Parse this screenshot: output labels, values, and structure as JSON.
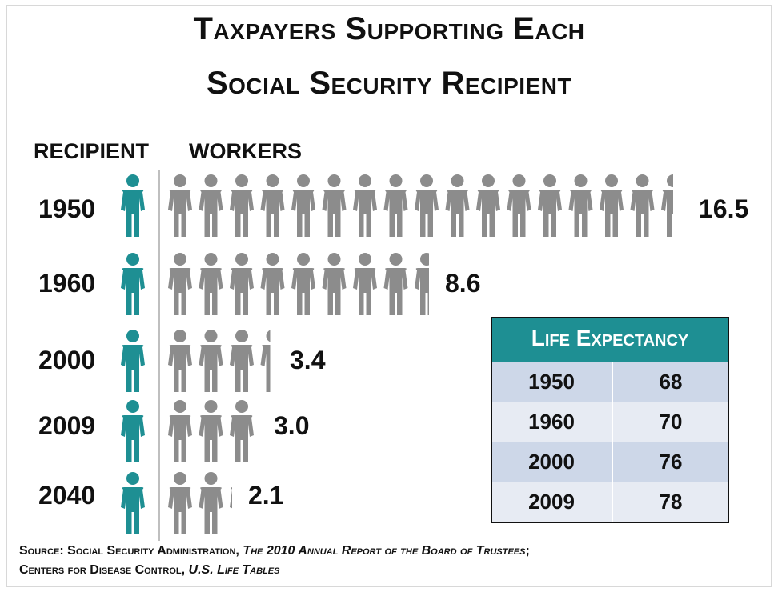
{
  "title_line1": "Taxpayers Supporting Each",
  "title_line2": "Social Security Recipient",
  "colors": {
    "recipient": "#1e8f93",
    "worker": "#8c8c8c",
    "table_header": "#1e8f93"
  },
  "chart_data": {
    "type": "bar",
    "title": "Taxpayers Supporting Each Social Security Recipient",
    "category_axis_label": "RECIPIENT",
    "value_axis_label": "WORKERS",
    "categories": [
      "1950",
      "1960",
      "2000",
      "2009",
      "2040"
    ],
    "series": [
      {
        "values": [
          16.5,
          8.6,
          3.4,
          3.0,
          2.1
        ]
      }
    ],
    "value_labels": [
      "16.5",
      "8.6",
      "3.4",
      "3.0",
      "2.1"
    ],
    "grid": false
  },
  "life_expectancy": {
    "header": "Life Expectancy",
    "rows": [
      {
        "year": "1950",
        "value": "68"
      },
      {
        "year": "1960",
        "value": "70"
      },
      {
        "year": "2000",
        "value": "76"
      },
      {
        "year": "2009",
        "value": "78"
      }
    ]
  },
  "source": {
    "line1_prefix": "Source: Social Security Administration, ",
    "line1_italic": "The 2010 Annual Report of the Board of Trustees",
    "line1_suffix": ";",
    "line2_prefix": "Centers for Disease Control, ",
    "line2_italic": "U.S. Life Tables"
  }
}
